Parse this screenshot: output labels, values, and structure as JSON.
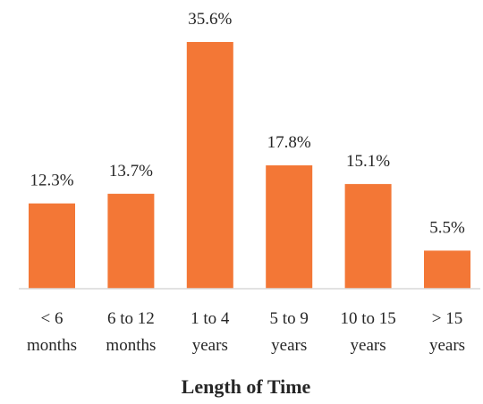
{
  "chart_data": {
    "type": "bar",
    "categories": [
      [
        "< 6",
        "months"
      ],
      [
        "6 to 12",
        "months"
      ],
      [
        "1 to 4",
        "years"
      ],
      [
        "5 to 9",
        "years"
      ],
      [
        "10 to 15",
        "years"
      ],
      [
        "> 15",
        "years"
      ]
    ],
    "values": [
      12.3,
      13.7,
      35.6,
      17.8,
      15.1,
      5.5
    ],
    "value_labels": [
      "12.3%",
      "13.7%",
      "35.6%",
      "17.8%",
      "15.1%",
      "5.5%"
    ],
    "title": "",
    "xlabel": "Length of Time",
    "ylabel": "",
    "ylim": [
      0,
      35.6
    ],
    "grid": false,
    "legend": "none",
    "colors": {
      "bar": "#F37736",
      "axis": "#D9D9D9",
      "text": "#262626"
    }
  }
}
